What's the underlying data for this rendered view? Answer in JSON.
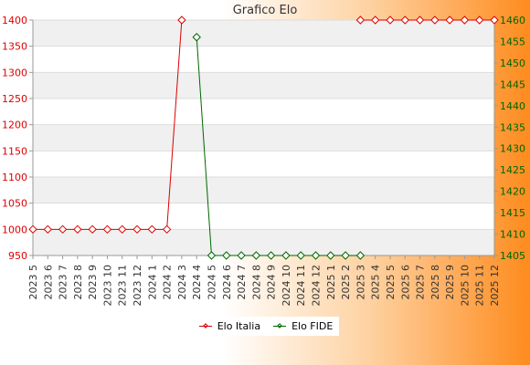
{
  "chart_data": {
    "type": "line",
    "title": "Grafico Elo",
    "categories": [
      "2023 5",
      "2023 6",
      "2023 7",
      "2023 8",
      "2023 9",
      "2023 10",
      "2023 11",
      "2023 12",
      "2024 1",
      "2024 2",
      "2024 3",
      "2024 4",
      "2024 5",
      "2024 6",
      "2024 7",
      "2024 8",
      "2024 9",
      "2024 10",
      "2024 11",
      "2024 12",
      "2025 1",
      "2025 2",
      "2025 3",
      "2025 4",
      "2025 5",
      "2025 6",
      "2025 7",
      "2025 8",
      "2025 9",
      "2025 10",
      "2025 11",
      "2025 12"
    ],
    "series": [
      {
        "name": "Elo Italia",
        "axis": "left",
        "color": "#dd0000",
        "values": [
          1000,
          1000,
          1000,
          1000,
          1000,
          1000,
          1000,
          1000,
          1000,
          1000,
          1400,
          null,
          null,
          null,
          null,
          null,
          null,
          null,
          null,
          null,
          null,
          null,
          1400,
          1400,
          1400,
          1400,
          1400,
          1400,
          1400,
          1400,
          1400,
          1400
        ]
      },
      {
        "name": "Elo FIDE",
        "axis": "right",
        "color": "#006600",
        "values": [
          null,
          null,
          null,
          null,
          null,
          null,
          null,
          null,
          null,
          null,
          null,
          1456,
          1405,
          1405,
          1405,
          1405,
          1405,
          1405,
          1405,
          1405,
          1405,
          1405,
          1405,
          null,
          null,
          null,
          null,
          null,
          null,
          null,
          null,
          null
        ]
      }
    ],
    "y_left": {
      "ylim": [
        950,
        1400
      ],
      "ticks": [
        950,
        1000,
        1050,
        1100,
        1150,
        1200,
        1250,
        1300,
        1350,
        1400
      ],
      "color": "#dd0000"
    },
    "y_right": {
      "ylim": [
        1405,
        1460
      ],
      "ticks": [
        1405,
        1410,
        1415,
        1420,
        1425,
        1430,
        1435,
        1440,
        1445,
        1450,
        1455,
        1460
      ],
      "color": "#006600"
    },
    "grid": true,
    "legend_position": "bottom-center"
  }
}
